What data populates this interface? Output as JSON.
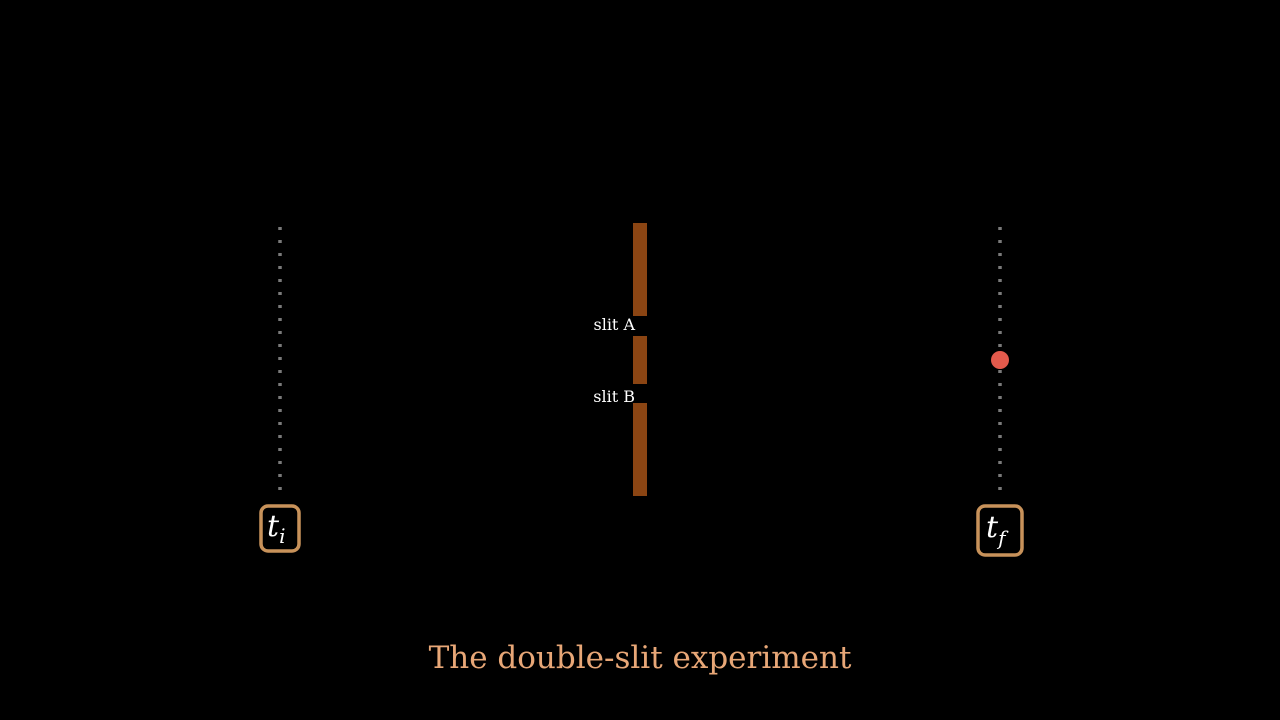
{
  "diagram": {
    "caption": "The double-slit experiment",
    "slits": {
      "a_label": "slit A",
      "b_label": "slit B"
    },
    "times": {
      "initial": {
        "base": "t",
        "sub": "i"
      },
      "final": {
        "base": "t",
        "sub": "f"
      }
    },
    "colors": {
      "background": "#000000",
      "barrier": "#8b4513",
      "box_border": "#c8925a",
      "dotted_line": "#7a7a7a",
      "particle": "#e35a4c",
      "caption": "#e8a777",
      "text": "#ffffff"
    }
  }
}
